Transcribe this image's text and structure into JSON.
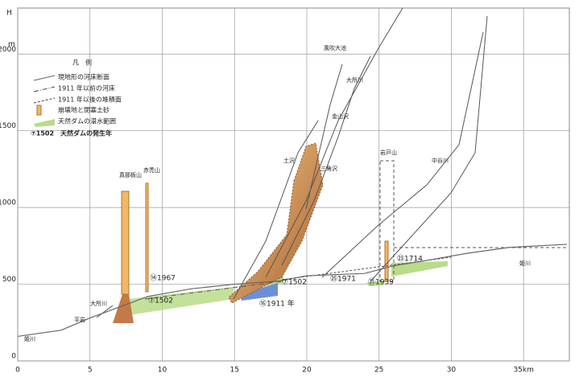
{
  "chart_data": {
    "type": "line",
    "y_top_label": "H",
    "y_unit_label": "m",
    "x": [
      0,
      3,
      5,
      7,
      9,
      12,
      15,
      18,
      20,
      24,
      26,
      28,
      31,
      34,
      38
    ],
    "series": [
      {
        "name": "現地形の河床断面",
        "color": "#666666",
        "values": [
          160,
          200,
          280,
          350,
          420,
          470,
          500,
          520,
          555,
          570,
          620,
          650,
          700,
          740,
          760
        ]
      }
    ],
    "xlim": [
      0,
      38
    ],
    "ylim": [
      0,
      2300
    ],
    "xticks": [
      0,
      5,
      10,
      15,
      20,
      25,
      30,
      {
        "value": 35,
        "label": "35km"
      }
    ],
    "yticks": [
      0,
      500,
      1000,
      1500,
      2000
    ],
    "grid": true,
    "legend_title": "凡　例",
    "legend_items": [
      "1911 年以前の河床",
      "1911 年以後の堆積面",
      "崩壊地と閉塞土砂",
      "天然ダムの湛水範囲",
      "⑦1502　天然ダムの発生年"
    ],
    "annotations": [
      "⑦1502",
      "⑭1967",
      "⑦1502",
      "⑯1911 年",
      "㉕1971",
      "㉑1939",
      "㉓1714"
    ],
    "place_labels": [
      "真那板山",
      "赤禿山",
      "岩戸山",
      "風吹大池",
      "大所川",
      "金山沢",
      "土沢",
      "三角沢",
      "中谷川",
      "姫川",
      "平岩",
      "大所川",
      "姫川"
    ]
  }
}
